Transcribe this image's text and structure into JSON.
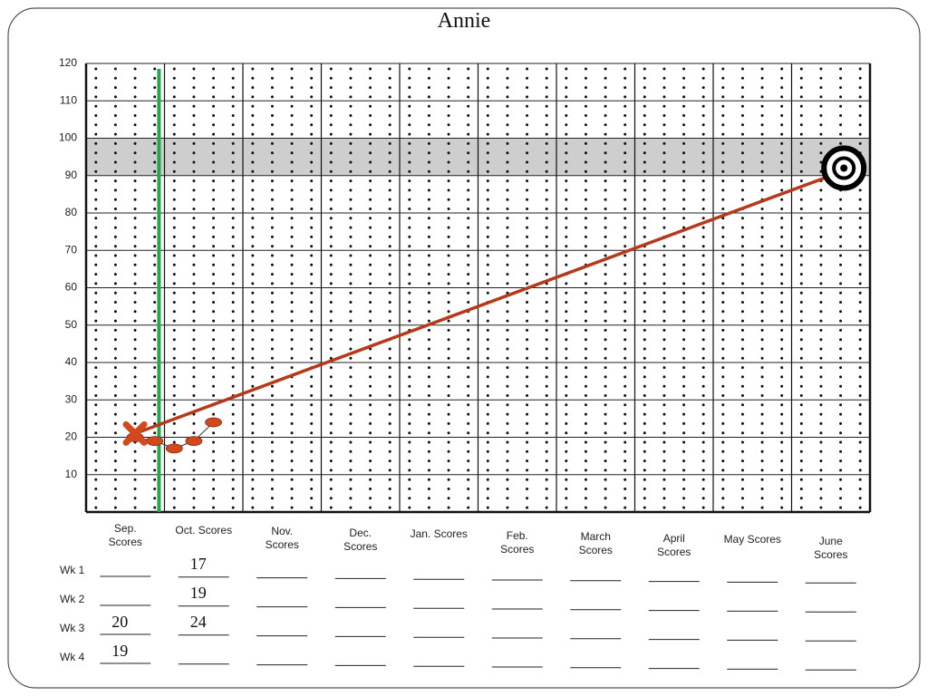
{
  "chart_data": {
    "type": "progress",
    "title": "Annie",
    "ylim": [
      0,
      120
    ],
    "yticks": [
      10,
      20,
      30,
      40,
      50,
      60,
      70,
      80,
      90,
      100,
      110,
      120
    ],
    "months": [
      "Sep. Scores",
      "Oct. Scores",
      "Nov. Scores",
      "Dec. Scores",
      "Jan. Scores",
      "Feb. Scores",
      "March Scores",
      "April Scores",
      "May Scores",
      "June Scores"
    ],
    "weeks": [
      "Wk 1",
      "Wk 2",
      "Wk 3",
      "Wk 4"
    ],
    "scores": [
      [
        null,
        17,
        null,
        null,
        null,
        null,
        null,
        null,
        null,
        null
      ],
      [
        null,
        19,
        null,
        null,
        null,
        null,
        null,
        null,
        null,
        null
      ],
      [
        20,
        24,
        null,
        null,
        null,
        null,
        null,
        null,
        null,
        null
      ],
      [
        19,
        null,
        null,
        null,
        null,
        null,
        null,
        null,
        null,
        null
      ]
    ],
    "baseline": 21,
    "goal": 92,
    "goal_band": [
      90,
      100
    ],
    "point_color": "#d4481e",
    "aimline_color": "#b5391a",
    "baseline_line_color": "#22a84a"
  }
}
